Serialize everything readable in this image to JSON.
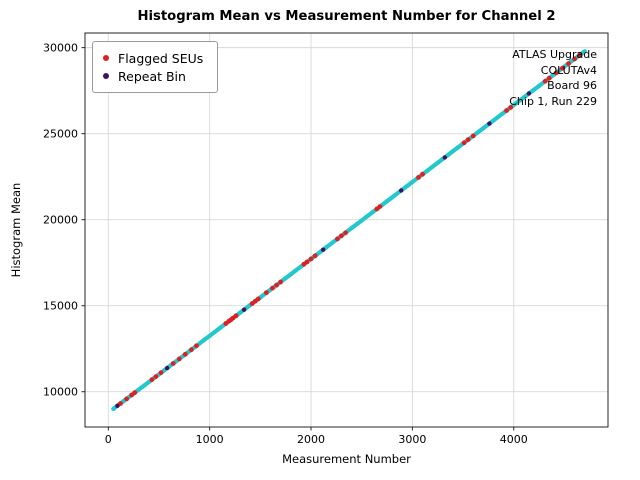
{
  "figure": {
    "title": "Histogram Mean vs Measurement Number for Channel 2",
    "xlabel": "Measurement Number",
    "ylabel": "Histogram Mean"
  },
  "legend": {
    "items": [
      {
        "label": "Flagged SEUs",
        "color": "#e02020"
      },
      {
        "label": "Repeat Bin",
        "color": "#431060"
      }
    ]
  },
  "annotations": {
    "lines": [
      "ATLAS Upgrade",
      "COLUTAv4",
      "Board 96",
      "Chip 1, Run 229"
    ]
  },
  "axes": {
    "xlim": [
      -230,
      4930
    ],
    "ylim": [
      7950,
      30850
    ],
    "xticks": [
      0,
      1000,
      2000,
      3000,
      4000
    ],
    "yticks": [
      10000,
      15000,
      20000,
      25000,
      30000
    ],
    "grid_color": "#d8d8d8",
    "border_color": "#262626"
  },
  "chart_data": {
    "type": "scatter",
    "title": "Histogram Mean vs Measurement Number for Channel 2",
    "xlabel": "Measurement Number",
    "ylabel": "Histogram Mean",
    "xlim": [
      -230,
      4930
    ],
    "ylim": [
      7950,
      30850
    ],
    "grid": true,
    "legend_position": "upper left",
    "fit": {
      "model": "linear",
      "intercept": 8780,
      "slope": 4.47,
      "note": "Histogram mean rises linearly with measurement number from ~9000 at 50 to ~29800 at 4700"
    },
    "series": [
      {
        "name": "Histogram Mean (Channel 2)",
        "color": "#22c8cd",
        "marker_radius": 2.1,
        "x": [
          50,
          100,
          150,
          200,
          250,
          300,
          350,
          400,
          450,
          500,
          550,
          600,
          650,
          700,
          750,
          800,
          850,
          900,
          950,
          1000,
          1050,
          1100,
          1150,
          1200,
          1250,
          1300,
          1350,
          1400,
          1450,
          1500,
          1550,
          1600,
          1650,
          1700,
          1750,
          1800,
          1850,
          1900,
          1950,
          2000,
          2050,
          2100,
          2150,
          2200,
          2250,
          2300,
          2350,
          2400,
          2450,
          2500,
          2550,
          2600,
          2650,
          2700,
          2750,
          2800,
          2850,
          2900,
          2950,
          3000,
          3050,
          3100,
          3150,
          3200,
          3250,
          3300,
          3350,
          3400,
          3450,
          3500,
          3550,
          3600,
          3650,
          3700,
          3750,
          3800,
          3850,
          3900,
          3950,
          4000,
          4050,
          4100,
          4150,
          4200,
          4250,
          4300,
          4350,
          4400,
          4450,
          4500,
          4550,
          4600,
          4650,
          4700
        ],
        "y": [
          9004,
          9227,
          9451,
          9674,
          9898,
          10121,
          10345,
          10568,
          10792,
          11015,
          11239,
          11462,
          11686,
          11909,
          12133,
          12356,
          12580,
          12803,
          13027,
          13250,
          13474,
          13697,
          13921,
          14144,
          14368,
          14591,
          14815,
          15038,
          15262,
          15485,
          15709,
          15932,
          16156,
          16379,
          16603,
          16826,
          17050,
          17273,
          17497,
          17720,
          17944,
          18167,
          18391,
          18614,
          18838,
          19061,
          19285,
          19508,
          19732,
          19955,
          20179,
          20402,
          20626,
          20849,
          21073,
          21296,
          21520,
          21743,
          21967,
          22190,
          22414,
          22637,
          22861,
          23084,
          23308,
          23531,
          23755,
          23978,
          24202,
          24425,
          24649,
          24872,
          25096,
          25319,
          25543,
          25766,
          25990,
          26213,
          26437,
          26660,
          26884,
          27107,
          27331,
          27554,
          27778,
          28001,
          28225,
          28448,
          28672,
          28895,
          29119,
          29342,
          29566,
          29789
        ]
      },
      {
        "name": "Flagged SEUs",
        "color": "#e02020",
        "marker_radius": 2.4,
        "x": [
          120,
          180,
          230,
          260,
          430,
          470,
          520,
          640,
          700,
          760,
          820,
          870,
          1160,
          1190,
          1210,
          1230,
          1260,
          1420,
          1450,
          1480,
          1560,
          1620,
          1660,
          1700,
          1930,
          1960,
          2000,
          2040,
          2260,
          2300,
          2340,
          2650,
          2680,
          3060,
          3100,
          3510,
          3550,
          3600,
          3930,
          3970,
          4310,
          4350,
          4420,
          4480,
          4540,
          4600,
          4650
        ],
        "y": [
          9316,
          9585,
          9808,
          9942,
          10702,
          10881,
          11104,
          11641,
          11909,
          12177,
          12445,
          12669,
          13965,
          14099,
          14189,
          14278,
          14412,
          15127,
          15262,
          15396,
          15753,
          16021,
          16200,
          16379,
          17407,
          17541,
          17720,
          17899,
          18882,
          19061,
          19240,
          20626,
          20760,
          22458,
          22637,
          24470,
          24649,
          24872,
          26347,
          26526,
          28046,
          28225,
          28538,
          28806,
          29074,
          29342,
          29566
        ]
      },
      {
        "name": "Repeat Bin",
        "color": "#431060",
        "marker_radius": 2.2,
        "x": [
          90,
          580,
          1340,
          2120,
          2890,
          3320,
          3760,
          4150
        ],
        "y": [
          9182,
          11373,
          14770,
          18256,
          21698,
          23620,
          25587,
          27331
        ]
      }
    ]
  }
}
